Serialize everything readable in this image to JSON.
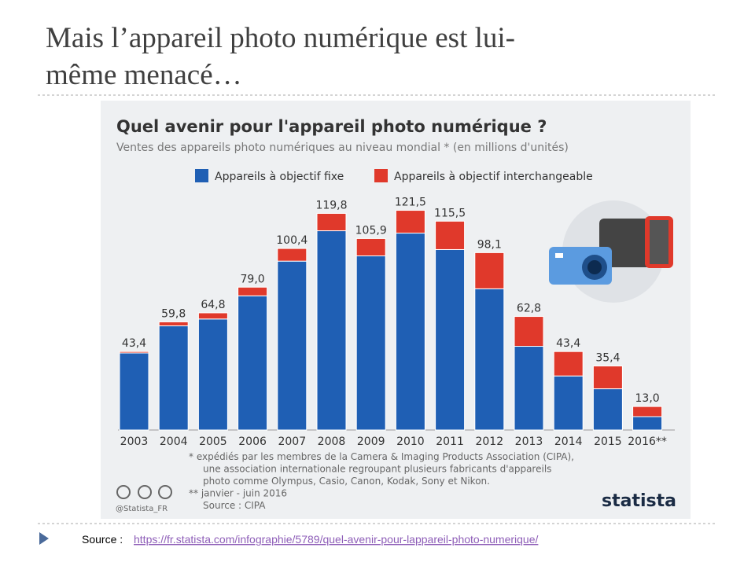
{
  "slide_title": [
    "Mais l’appareil photo numérique est lui-",
    "même menacé…"
  ],
  "chart_data": {
    "type": "stacked-bar",
    "title": "Quel avenir pour l'appareil photo numérique ?",
    "subtitle": "Ventes des appareils photo numériques au niveau mondial * (en millions d'unités)",
    "categories": [
      "2003",
      "2004",
      "2005",
      "2006",
      "2007",
      "2008",
      "2009",
      "2010",
      "2011",
      "2012",
      "2013",
      "2014",
      "2015",
      "2016**"
    ],
    "series": [
      {
        "name": "Appareils à objectif fixe",
        "color": "#1f5fb4",
        "values": [
          42.6,
          57.6,
          61.4,
          74.2,
          93.4,
          110.2,
          96.3,
          108.9,
          99.8,
          78.1,
          46.3,
          29.9,
          22.8,
          7.4
        ]
      },
      {
        "name": "Appareils à objectif interchangeable",
        "color": "#e0392b",
        "values": [
          0.8,
          2.2,
          3.4,
          4.8,
          7.0,
          9.6,
          9.6,
          12.6,
          15.7,
          20.0,
          16.5,
          13.5,
          12.6,
          5.6
        ]
      }
    ],
    "totals": [
      43.4,
      59.8,
      64.8,
      79.0,
      100.4,
      119.8,
      105.9,
      121.5,
      115.5,
      98.1,
      62.8,
      43.4,
      35.4,
      13.0
    ],
    "total_labels": [
      "43,4",
      "59,8",
      "64,8",
      "79,0",
      "100,4",
      "119,8",
      "105,9",
      "121,5",
      "115,5",
      "98,1",
      "62,8",
      "43,4",
      "35,4",
      "13,0"
    ],
    "notes": [
      "*   expédiés par les membres de la Camera & Imaging Products Association (CIPA),",
      "une association internationale regroupant plusieurs fabricants d'appareils",
      "photo comme Olympus, Casio, Canon, Kodak, Sony et Nikon.",
      "** janvier - juin 2016",
      "Source : CIPA"
    ],
    "credit": "@Statista_FR",
    "brand": "statista"
  },
  "source": {
    "label": "Source :",
    "url": "https://fr.statista.com/infographie/5789/quel-avenir-pour-lappareil-photo-numerique/"
  }
}
